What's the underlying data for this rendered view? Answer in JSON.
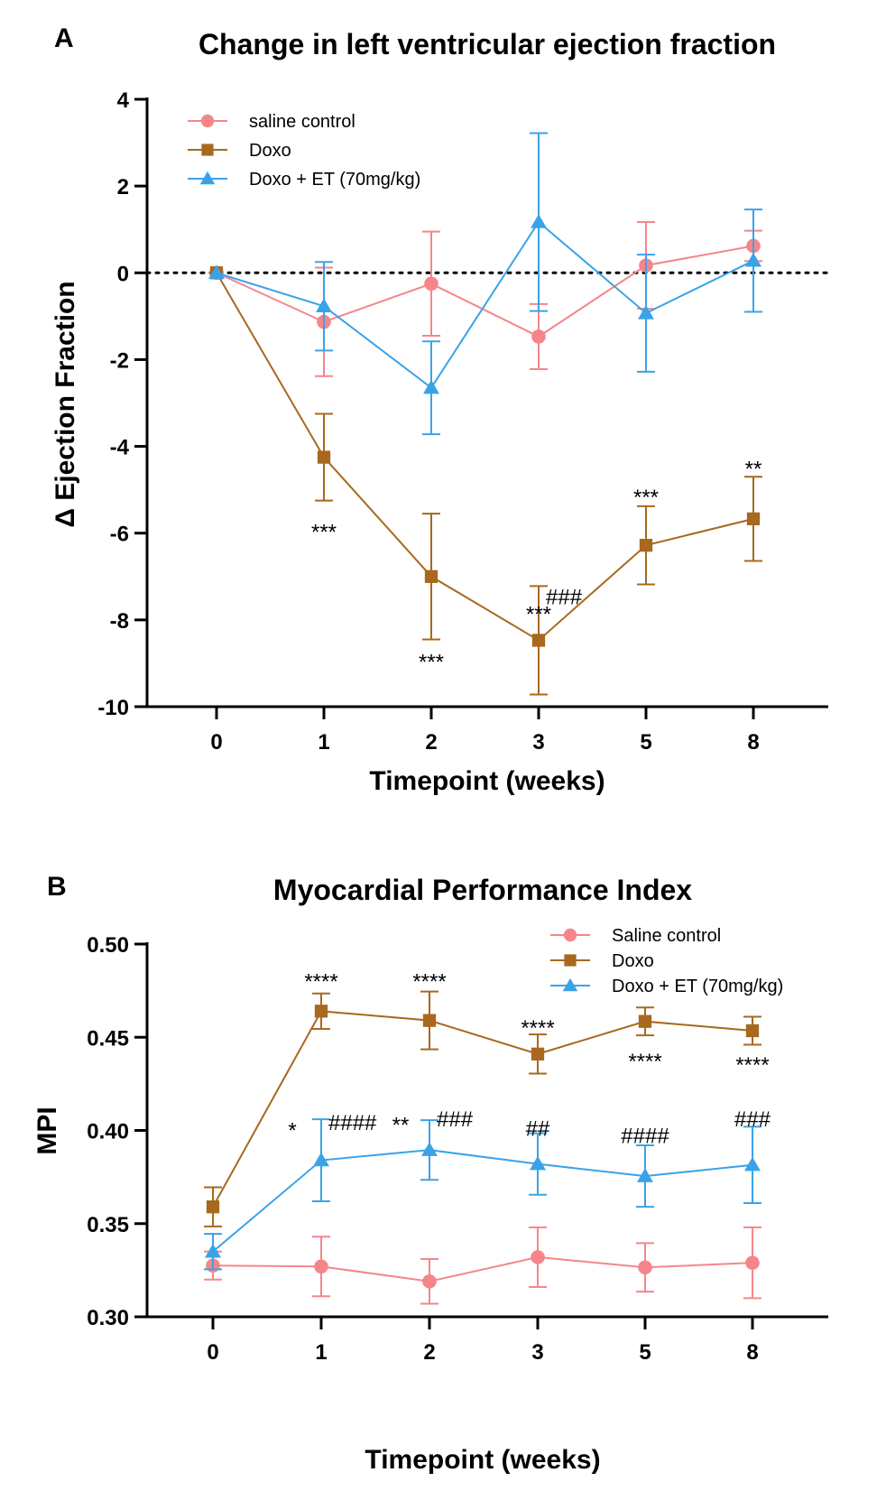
{
  "chart_data": [
    {
      "type": "line",
      "panel": "A",
      "title": "Change in left ventricular ejection fraction",
      "xlabel": "Timepoint (weeks)",
      "ylabel": "Δ Ejection Fraction",
      "categories": [
        "0",
        "1",
        "2",
        "3",
        "5",
        "8"
      ],
      "ylim": [
        -10,
        4
      ],
      "yticks": [
        4,
        2,
        0,
        -2,
        -4,
        -6,
        -8,
        -10
      ],
      "ytick_labels": [
        "4",
        "2",
        "0",
        "-2",
        "-4",
        "-6",
        "-8",
        "-10"
      ],
      "reference_line": 0,
      "legend_position": "top-left",
      "series": [
        {
          "name": "saline control",
          "color": "#f4868a",
          "marker": "circle",
          "values": [
            0,
            -1.13,
            -0.25,
            -1.47,
            0.17,
            0.62
          ],
          "errors": [
            0,
            1.25,
            1.2,
            0.75,
            1.0,
            0.35
          ]
        },
        {
          "name": "Doxo",
          "color": "#a8681e",
          "marker": "square",
          "values": [
            0,
            -4.25,
            -7.0,
            -8.47,
            -6.28,
            -5.67
          ],
          "errors": [
            0,
            1.0,
            1.45,
            1.25,
            0.9,
            0.97
          ]
        },
        {
          "name": "Doxo + ET (70mg/kg)",
          "color": "#3aa3e8",
          "marker": "triangle",
          "values": [
            0,
            -0.77,
            -2.65,
            1.17,
            -0.93,
            0.28
          ],
          "errors": [
            0,
            1.02,
            1.07,
            2.05,
            1.35,
            1.18
          ]
        }
      ],
      "annotations": [
        {
          "text": "***",
          "x": "1",
          "y": -5.95
        },
        {
          "text": "***",
          "x": "2",
          "y": -8.95
        },
        {
          "text": "***",
          "x": "3",
          "y": -7.85
        },
        {
          "text": "###",
          "x": "3",
          "y": -7.45,
          "offset": "right"
        },
        {
          "text": "***",
          "x": "5",
          "y": -5.15
        },
        {
          "text": "**",
          "x": "8",
          "y": -4.5
        }
      ]
    },
    {
      "type": "line",
      "panel": "B",
      "title": "Myocardial Performance Index",
      "xlabel": "Timepoint (weeks)",
      "ylabel": "MPI",
      "categories": [
        "0",
        "1",
        "2",
        "3",
        "5",
        "8"
      ],
      "ylim": [
        0.3,
        0.5
      ],
      "yticks": [
        0.5,
        0.45,
        0.4,
        0.35,
        0.3
      ],
      "ytick_labels": [
        "0.50",
        "0.45",
        "0.40",
        "0.35",
        "0.30"
      ],
      "legend_position": "top-right",
      "series": [
        {
          "name": "Saline control",
          "color": "#f4868a",
          "marker": "circle",
          "values": [
            0.3275,
            0.327,
            0.319,
            0.332,
            0.3265,
            0.329
          ],
          "errors": [
            0.0075,
            0.016,
            0.012,
            0.016,
            0.013,
            0.019
          ]
        },
        {
          "name": "Doxo",
          "color": "#a8681e",
          "marker": "square",
          "values": [
            0.359,
            0.464,
            0.459,
            0.441,
            0.4585,
            0.4535
          ],
          "errors": [
            0.0105,
            0.0095,
            0.0155,
            0.0105,
            0.0075,
            0.0075
          ]
        },
        {
          "name": "Doxo + ET (70mg/kg)",
          "color": "#3aa3e8",
          "marker": "triangle",
          "values": [
            0.335,
            0.384,
            0.3895,
            0.382,
            0.3755,
            0.3815
          ],
          "errors": [
            0.0095,
            0.022,
            0.016,
            0.0165,
            0.0165,
            0.0205
          ]
        }
      ],
      "annotations": [
        {
          "text": "****",
          "x": "1",
          "y": 0.4805
        },
        {
          "text": "****",
          "x": "2",
          "y": 0.4805
        },
        {
          "text": "****",
          "x": "3",
          "y": 0.4555
        },
        {
          "text": "****",
          "x": "5",
          "y": 0.4375
        },
        {
          "text": "****",
          "x": "8",
          "y": 0.4355
        },
        {
          "text": "*",
          "x": "1",
          "y": 0.4005,
          "offset": "left"
        },
        {
          "text": "####",
          "x": "1",
          "y": 0.4045,
          "offset": "right"
        },
        {
          "text": "**",
          "x": "2",
          "y": 0.4035,
          "offset": "left"
        },
        {
          "text": "###",
          "x": "2",
          "y": 0.4065,
          "offset": "right"
        },
        {
          "text": "##",
          "x": "3",
          "y": 0.4015
        },
        {
          "text": "####",
          "x": "5",
          "y": 0.3975
        },
        {
          "text": "###",
          "x": "8",
          "y": 0.4065
        }
      ]
    }
  ]
}
